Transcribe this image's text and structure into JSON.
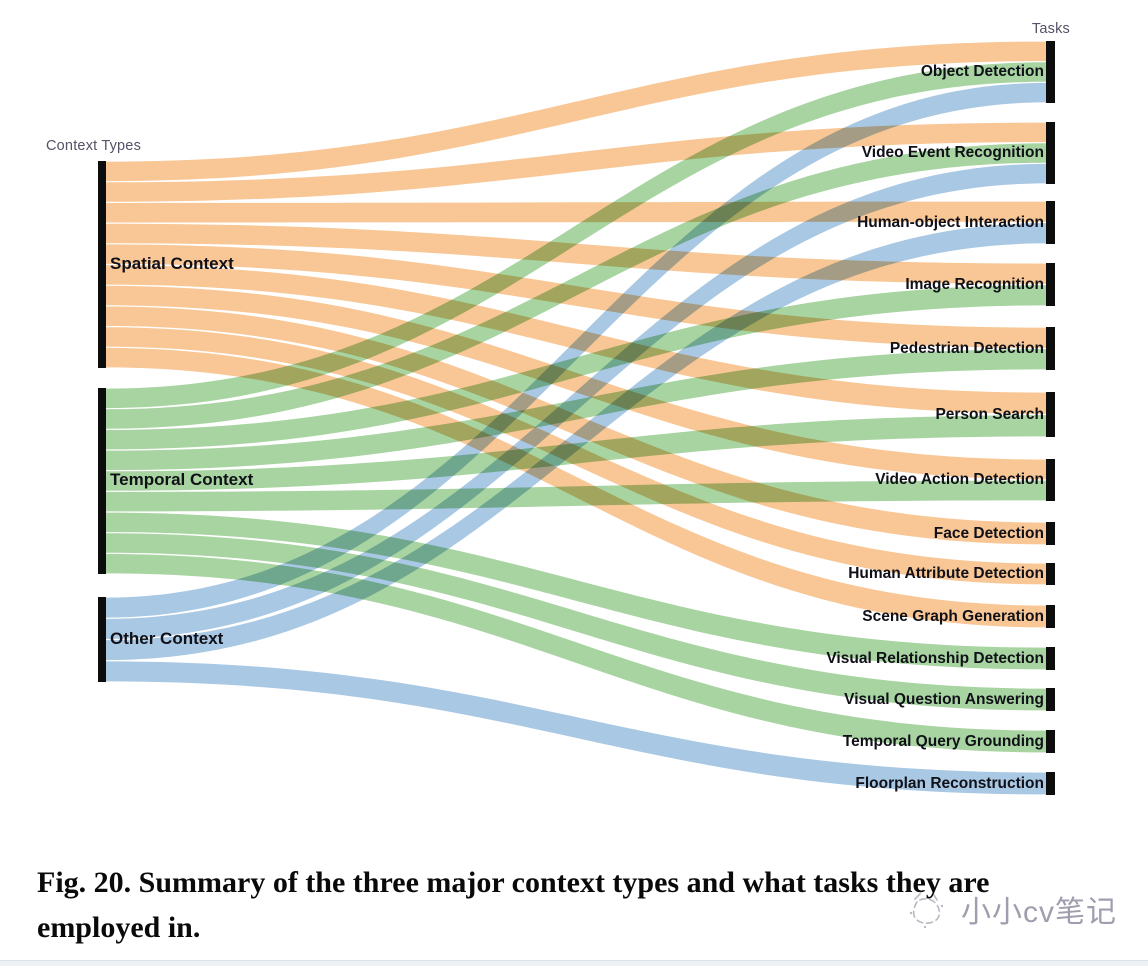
{
  "figure": {
    "left_column_header": "Context Types",
    "right_column_header": "Tasks"
  },
  "chart_data": {
    "type": "sankey",
    "title": "Summary of the three major context types and the tasks they are employed in",
    "legend_position": "none",
    "node_bar_color": "#0d0d0d",
    "sources": [
      {
        "id": "spatial",
        "label": "Spatial Context",
        "color": "#F8C795",
        "total": 10
      },
      {
        "id": "temporal",
        "label": "Temporal Context",
        "color": "#A7D4A0",
        "total": 9
      },
      {
        "id": "other",
        "label": "Other Context",
        "color": "#A9C8E3",
        "total": 4
      }
    ],
    "targets": [
      {
        "label": "Object Detection",
        "value": 3,
        "from": [
          "spatial",
          "temporal",
          "other"
        ]
      },
      {
        "label": "Video Event Recognition",
        "value": 3,
        "from": [
          "spatial",
          "temporal",
          "other"
        ]
      },
      {
        "label": "Human-object Interaction",
        "value": 2,
        "from": [
          "spatial",
          "other"
        ]
      },
      {
        "label": "Image Recognition",
        "value": 2,
        "from": [
          "spatial",
          "temporal"
        ]
      },
      {
        "label": "Pedestrian Detection",
        "value": 2,
        "from": [
          "spatial",
          "temporal"
        ]
      },
      {
        "label": "Person Search",
        "value": 2,
        "from": [
          "spatial",
          "temporal"
        ]
      },
      {
        "label": "Video Action Detection",
        "value": 2,
        "from": [
          "spatial",
          "temporal"
        ]
      },
      {
        "label": "Face Detection",
        "value": 1,
        "from": [
          "spatial"
        ]
      },
      {
        "label": "Human Attribute Detection",
        "value": 1,
        "from": [
          "spatial"
        ]
      },
      {
        "label": "Scene Graph Generation",
        "value": 1,
        "from": [
          "spatial"
        ]
      },
      {
        "label": "Visual Relationship Detection",
        "value": 1,
        "from": [
          "temporal"
        ]
      },
      {
        "label": "Visual Question Answering",
        "value": 1,
        "from": [
          "temporal"
        ]
      },
      {
        "label": "Temporal Query Grounding",
        "value": 1,
        "from": [
          "temporal"
        ]
      },
      {
        "label": "Floorplan Reconstruction",
        "value": 1,
        "from": [
          "other"
        ]
      }
    ],
    "links": [
      {
        "source": "spatial",
        "target": "Object Detection",
        "value": 1
      },
      {
        "source": "spatial",
        "target": "Video Event Recognition",
        "value": 1
      },
      {
        "source": "spatial",
        "target": "Human-object Interaction",
        "value": 1
      },
      {
        "source": "spatial",
        "target": "Image Recognition",
        "value": 1
      },
      {
        "source": "spatial",
        "target": "Pedestrian Detection",
        "value": 1
      },
      {
        "source": "spatial",
        "target": "Person Search",
        "value": 1
      },
      {
        "source": "spatial",
        "target": "Video Action Detection",
        "value": 1
      },
      {
        "source": "spatial",
        "target": "Face Detection",
        "value": 1
      },
      {
        "source": "spatial",
        "target": "Human Attribute Detection",
        "value": 1
      },
      {
        "source": "spatial",
        "target": "Scene Graph Generation",
        "value": 1
      },
      {
        "source": "temporal",
        "target": "Object Detection",
        "value": 1
      },
      {
        "source": "temporal",
        "target": "Video Event Recognition",
        "value": 1
      },
      {
        "source": "temporal",
        "target": "Image Recognition",
        "value": 1
      },
      {
        "source": "temporal",
        "target": "Pedestrian Detection",
        "value": 1
      },
      {
        "source": "temporal",
        "target": "Person Search",
        "value": 1
      },
      {
        "source": "temporal",
        "target": "Video Action Detection",
        "value": 1
      },
      {
        "source": "temporal",
        "target": "Visual Relationship Detection",
        "value": 1
      },
      {
        "source": "temporal",
        "target": "Visual Question Answering",
        "value": 1
      },
      {
        "source": "temporal",
        "target": "Temporal Query Grounding",
        "value": 1
      },
      {
        "source": "other",
        "target": "Object Detection",
        "value": 1
      },
      {
        "source": "other",
        "target": "Video Event Recognition",
        "value": 1
      },
      {
        "source": "other",
        "target": "Human-object Interaction",
        "value": 1
      },
      {
        "source": "other",
        "target": "Floorplan Reconstruction",
        "value": 1
      }
    ]
  },
  "caption": {
    "lines": [
      "Fig. 20. Summary of the three major context types and what tasks they are",
      "employed in."
    ]
  },
  "watermark": {
    "icon": "cat-doodle-icon",
    "text": "小小cv笔记"
  }
}
